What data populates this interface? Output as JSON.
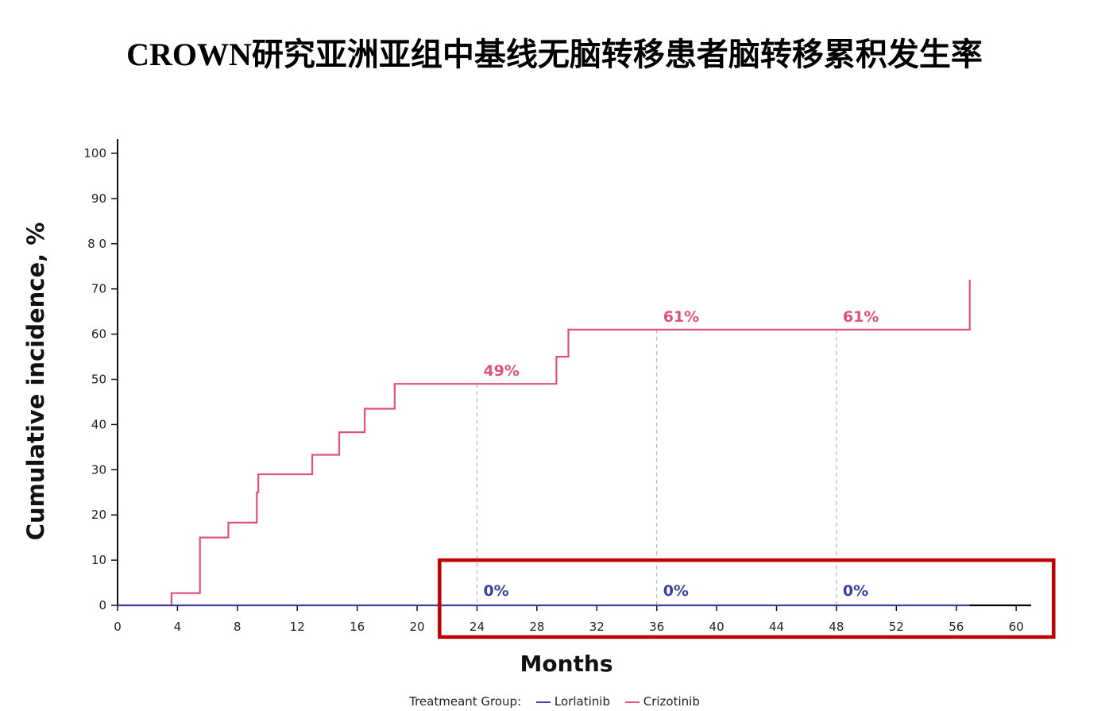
{
  "title": "CROWN研究亚洲亚组中基线无脑转移患者脑转移累积发生率",
  "title_latin": "CROWN",
  "title_cjk": "研究亚洲亚组中基线无脑转移患者脑转移累积发生率",
  "legend": {
    "label": "Treatmeant Group:",
    "items": [
      {
        "name": "Lorlatinib",
        "color": "#3a3fa0"
      },
      {
        "name": "Crizotinib",
        "color": "#e0527a"
      }
    ]
  },
  "chart_data": {
    "type": "line",
    "title": "CROWN研究亚洲亚组中基线无脑转移患者脑转移累积发生率",
    "xlabel": "Months",
    "ylabel": "Cumulative incidence, %",
    "xlim": [
      0,
      61
    ],
    "ylim": [
      0,
      100
    ],
    "x_ticks": [
      "0",
      "4",
      "8",
      "12",
      "16",
      "20",
      "24",
      "28",
      "32",
      "36",
      "40",
      "44",
      "48",
      "52",
      "56",
      "60"
    ],
    "y_ticks": [
      "0",
      "10",
      "20",
      "30",
      "40",
      "50",
      "60",
      "70",
      "80",
      "90",
      "100"
    ],
    "y_tick_labels": [
      "0",
      "10",
      "20",
      "30",
      "40",
      "50",
      "60",
      "70",
      "8 0",
      "90",
      "100"
    ],
    "series": [
      {
        "name": "Crizotinib",
        "color": "#e0527a",
        "step": true,
        "points": [
          [
            0,
            0
          ],
          [
            3.6,
            0
          ],
          [
            3.6,
            2.7
          ],
          [
            5.5,
            2.7
          ],
          [
            5.5,
            15
          ],
          [
            7.4,
            15
          ],
          [
            7.4,
            18.3
          ],
          [
            9.3,
            18.3
          ],
          [
            9.3,
            25
          ],
          [
            9.4,
            25
          ],
          [
            9.4,
            29
          ],
          [
            13.0,
            29
          ],
          [
            13.0,
            33.3
          ],
          [
            14.8,
            33.3
          ],
          [
            14.8,
            38.3
          ],
          [
            16.5,
            38.3
          ],
          [
            16.5,
            43.5
          ],
          [
            18.5,
            43.5
          ],
          [
            18.5,
            49
          ],
          [
            29.3,
            49
          ],
          [
            29.3,
            55
          ],
          [
            30.1,
            55
          ],
          [
            30.1,
            61
          ],
          [
            56.9,
            61
          ],
          [
            56.9,
            72
          ]
        ]
      },
      {
        "name": "Lorlatinib",
        "color": "#3a3fa0",
        "step": true,
        "points": [
          [
            0,
            0
          ],
          [
            56.9,
            0
          ]
        ]
      }
    ],
    "annotations": [
      {
        "x": 24,
        "y": 49,
        "text": "49%",
        "series": "Crizotinib"
      },
      {
        "x": 36,
        "y": 61,
        "text": "61%",
        "series": "Crizotinib"
      },
      {
        "x": 48,
        "y": 61,
        "text": "61%",
        "series": "Crizotinib"
      },
      {
        "x": 24,
        "y": 0,
        "text": "0%",
        "series": "Lorlatinib"
      },
      {
        "x": 36,
        "y": 0,
        "text": "0%",
        "series": "Lorlatinib"
      },
      {
        "x": 48,
        "y": 0,
        "text": "0%",
        "series": "Lorlatinib"
      }
    ],
    "reference_lines_x": [
      24,
      36,
      48
    ],
    "highlight_box": {
      "x_from": 21.5,
      "x_to": 62.5,
      "y_from": -7,
      "y_to": 10,
      "color": "#c00000"
    },
    "grid": false,
    "legend_position": "bottom"
  }
}
